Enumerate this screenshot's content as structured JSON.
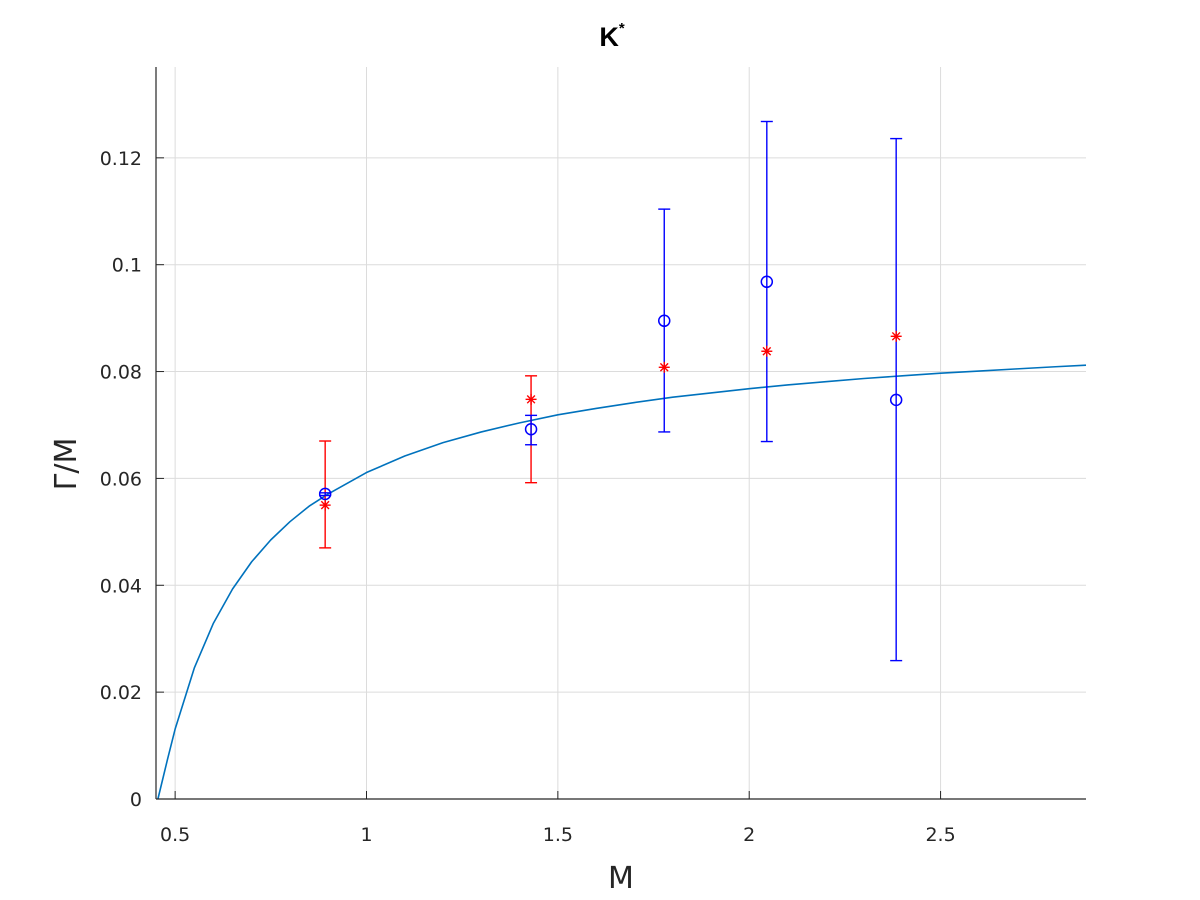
{
  "chart_data": {
    "type": "scatter",
    "title": "K",
    "title_superscript": "*",
    "xlabel": "M",
    "ylabel": "Γ/M",
    "xlim": [
      0.45,
      2.88
    ],
    "ylim": [
      0,
      0.137
    ],
    "x_ticks": [
      0.5,
      1,
      1.5,
      2,
      2.5
    ],
    "x_tick_labels": [
      "0.5",
      "1",
      "1.5",
      "2",
      "2.5"
    ],
    "y_ticks": [
      0,
      0.02,
      0.04,
      0.06,
      0.08,
      0.1,
      0.12
    ],
    "y_tick_labels": [
      "0",
      "0.02",
      "0.04",
      "0.06",
      "0.08",
      "0.1",
      "0.12"
    ],
    "grid": true,
    "legend": "none",
    "series": [
      {
        "kind": "line",
        "color": "#0072BD",
        "x": [
          0.455,
          0.48,
          0.5,
          0.55,
          0.6,
          0.65,
          0.7,
          0.75,
          0.8,
          0.85,
          0.9,
          1.0,
          1.1,
          1.2,
          1.3,
          1.4,
          1.5,
          1.6,
          1.7,
          1.8,
          1.9,
          2.0,
          2.1,
          2.2,
          2.3,
          2.4,
          2.5,
          2.6,
          2.7,
          2.8,
          2.88
        ],
        "y": [
          0.0,
          0.0074,
          0.0131,
          0.0245,
          0.0329,
          0.0393,
          0.0444,
          0.0485,
          0.0519,
          0.0548,
          0.0571,
          0.0611,
          0.0642,
          0.0667,
          0.0687,
          0.0704,
          0.0719,
          0.0731,
          0.0742,
          0.0752,
          0.076,
          0.0768,
          0.0775,
          0.0781,
          0.0787,
          0.0792,
          0.0797,
          0.0801,
          0.0805,
          0.0809,
          0.0812
        ]
      },
      {
        "kind": "errorbar",
        "marker": "*",
        "color": "#FF0000",
        "x": [
          0.892,
          1.43,
          1.778,
          2.046,
          2.384
        ],
        "y": [
          0.055,
          0.0748,
          0.0808,
          0.0838,
          0.0866
        ],
        "lower": [
          0.047,
          0.0592,
          null,
          null,
          null
        ],
        "upper": [
          0.067,
          0.0792,
          null,
          null,
          null
        ]
      },
      {
        "kind": "errorbar",
        "marker": "o",
        "color": "#0000FF",
        "x": [
          0.892,
          1.43,
          1.778,
          2.046,
          2.384
        ],
        "y": [
          0.0571,
          0.0692,
          0.0895,
          0.0968,
          0.0747
        ],
        "lower": [
          0.0568,
          0.0663,
          0.0687,
          0.0669,
          0.0259
        ],
        "upper": [
          0.0573,
          0.0718,
          0.1104,
          0.1268,
          0.1236
        ]
      }
    ]
  }
}
